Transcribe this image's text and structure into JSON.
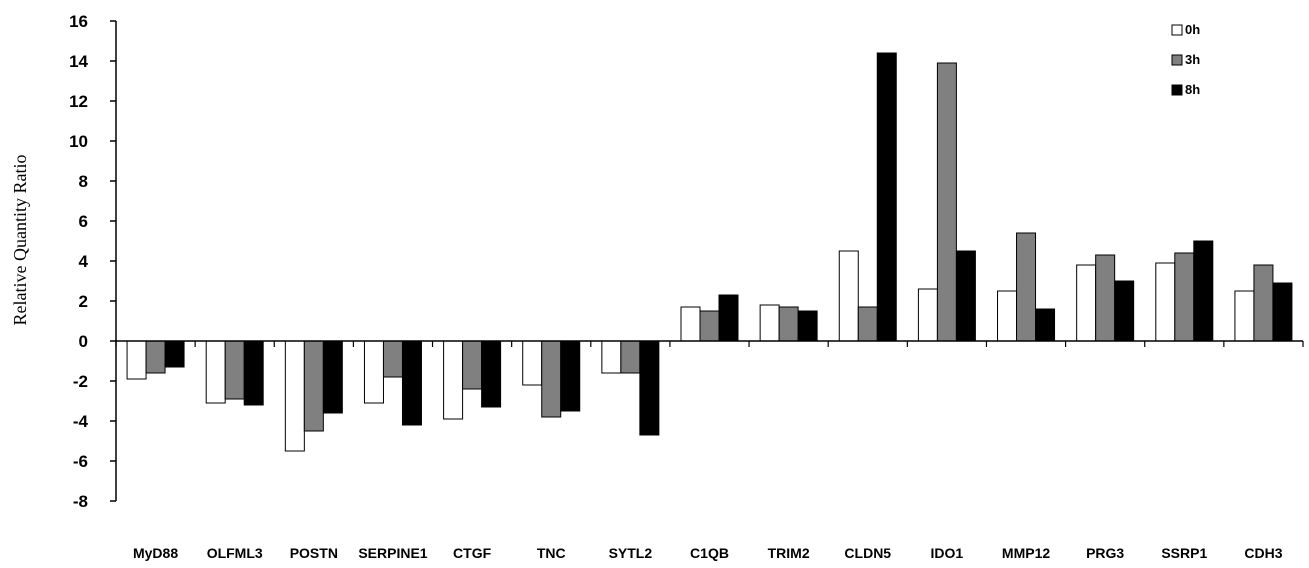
{
  "chart_data": {
    "type": "bar",
    "ylabel": "Relative Quantity Ratio",
    "ylim": [
      -8,
      16
    ],
    "yticks": [
      16,
      14,
      12,
      10,
      8,
      6,
      4,
      2,
      0,
      -2,
      -4,
      -6,
      -8
    ],
    "categories": [
      "MyD88",
      "OLFML3",
      "POSTN",
      "SERPINE1",
      "CTGF",
      "TNC",
      "SYTL2",
      "C1QB",
      "TRIM2",
      "CLDN5",
      "IDO1",
      "MMP12",
      "PRG3",
      "SSRP1",
      "CDH3"
    ],
    "series": [
      {
        "name": "0h",
        "color": "#ffffff",
        "values": [
          -1.9,
          -3.1,
          -5.5,
          -3.1,
          -3.9,
          -2.2,
          -1.6,
          1.7,
          1.8,
          4.5,
          2.6,
          2.5,
          3.8,
          3.9,
          2.5
        ]
      },
      {
        "name": "3h",
        "color": "#808080",
        "values": [
          -1.6,
          -2.9,
          -4.5,
          -1.8,
          -2.4,
          -3.8,
          -1.6,
          1.5,
          1.7,
          1.7,
          13.9,
          5.4,
          4.3,
          4.4,
          3.8
        ]
      },
      {
        "name": "8h",
        "color": "#000000",
        "values": [
          -1.3,
          -3.2,
          -3.6,
          -4.2,
          -3.3,
          -3.5,
          -4.7,
          2.3,
          1.5,
          14.4,
          4.5,
          1.6,
          3.0,
          5.0,
          2.9
        ]
      }
    ],
    "legend_position": "top-right",
    "grid": false
  }
}
